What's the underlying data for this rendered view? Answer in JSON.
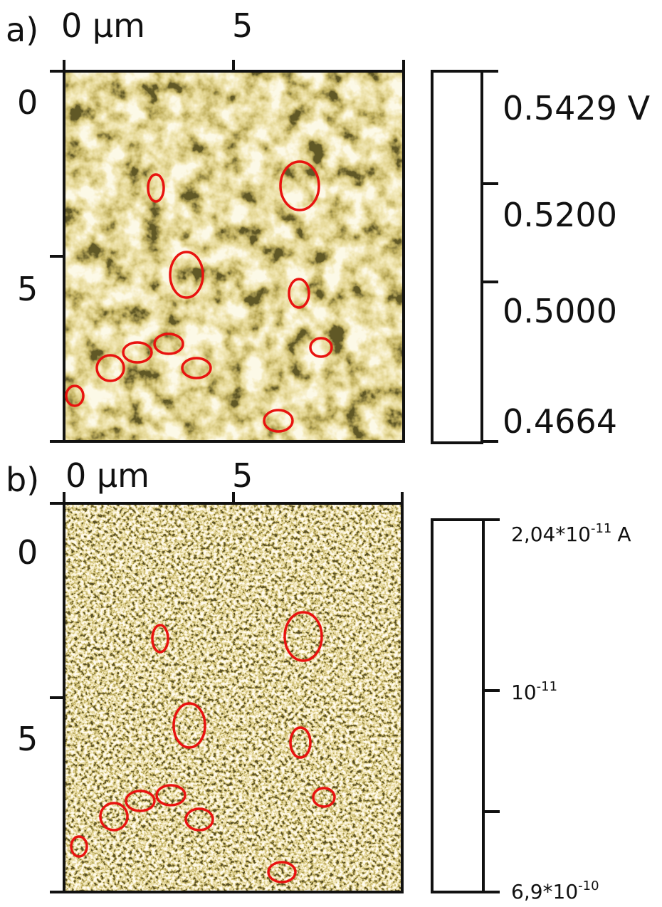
{
  "panels": [
    {
      "label": "a)",
      "x_ticks": [
        "0 µm",
        "5"
      ],
      "y_ticks": [
        "0",
        "5"
      ],
      "colorbar_labels": [
        {
          "text": "0.5429 V"
        },
        {
          "text": "0.5200"
        },
        {
          "text": "0.5000"
        },
        {
          "text": "0.4664"
        }
      ]
    },
    {
      "label": "b)",
      "x_ticks": [
        "0 µm",
        "5"
      ],
      "y_ticks": [
        "0",
        "5"
      ],
      "colorbar_labels": [
        {
          "base": "2,04*10",
          "exp": "-11",
          "unit": "A"
        },
        {
          "base": "10",
          "exp": "-11"
        },
        {
          "base": "6,9*10",
          "exp": "-10"
        }
      ]
    }
  ]
}
